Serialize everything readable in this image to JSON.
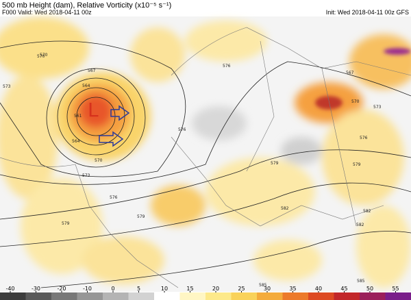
{
  "header": {
    "title": "500 mb Height (dam), Relative Vorticity (x10⁻⁵ s⁻¹)",
    "valid": "F000 Valid: Wed 2018-04-11 00z",
    "init": "Init: Wed 2018-04-11 00z GFS"
  },
  "map": {
    "low_label": "L",
    "contour_labels": [
      "570",
      "567",
      "564",
      "561",
      "573",
      "564",
      "570",
      "573",
      "576",
      "576",
      "576",
      "579",
      "579",
      "579",
      "582",
      "582",
      "582",
      "585",
      "585",
      "570",
      "567",
      "573",
      "576",
      "579",
      "570"
    ]
  },
  "colorbar": {
    "ticks": [
      -40,
      -30,
      -20,
      -10,
      0,
      5,
      10,
      15,
      20,
      25,
      30,
      35,
      40,
      45,
      50,
      55
    ]
  }
}
